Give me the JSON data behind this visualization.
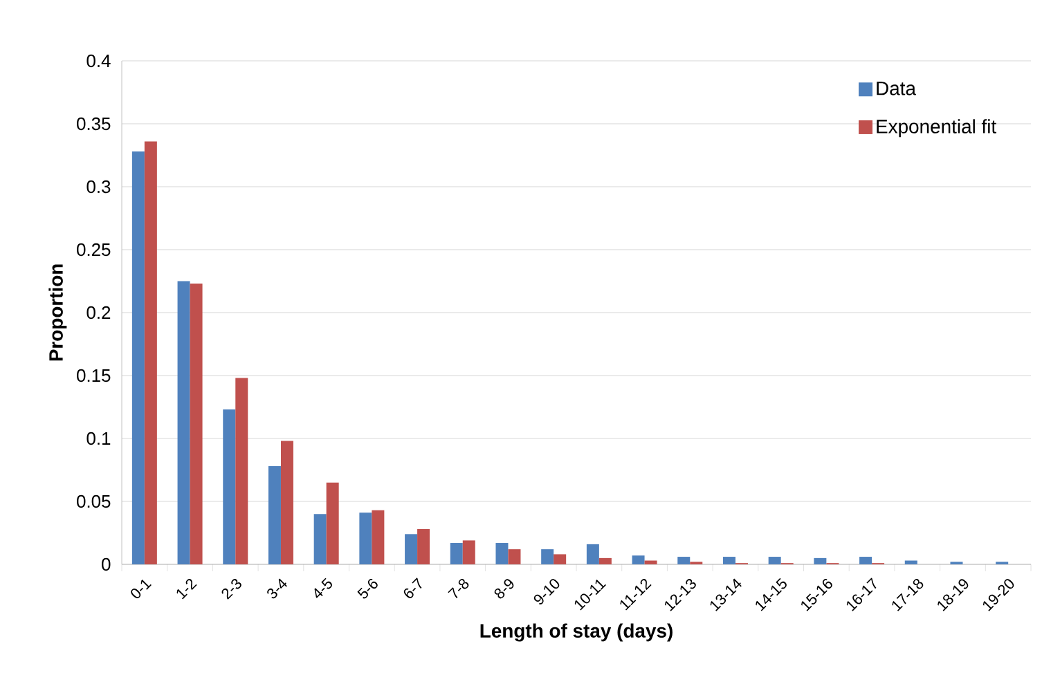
{
  "chart_data": {
    "type": "bar",
    "xlabel": "Length of stay (days)",
    "ylabel": "Proportion",
    "categories": [
      "0-1",
      "1-2",
      "2-3",
      "3-4",
      "4-5",
      "5-6",
      "6-7",
      "7-8",
      "8-9",
      "9-10",
      "10-11",
      "11-12",
      "12-13",
      "13-14",
      "14-15",
      "15-16",
      "16-17",
      "17-18",
      "18-19",
      "19-20"
    ],
    "series": [
      {
        "name": "Data",
        "color": "#4f81bd",
        "values": [
          0.328,
          0.225,
          0.123,
          0.078,
          0.04,
          0.041,
          0.024,
          0.017,
          0.017,
          0.012,
          0.016,
          0.007,
          0.006,
          0.006,
          0.006,
          0.005,
          0.006,
          0.003,
          0.002,
          0.002
        ]
      },
      {
        "name": "Exponential fit",
        "color": "#c0504d",
        "values": [
          0.336,
          0.223,
          0.148,
          0.098,
          0.065,
          0.043,
          0.028,
          0.019,
          0.012,
          0.008,
          0.005,
          0.003,
          0.002,
          0.001,
          0.001,
          0.001,
          0.001,
          null,
          null,
          null
        ]
      }
    ],
    "ylim": [
      0,
      0.4
    ],
    "yticks": [
      0,
      0.05,
      0.1,
      0.15,
      0.2,
      0.25,
      0.3,
      0.35,
      0.4
    ],
    "grid": "y",
    "legend": "top right"
  }
}
